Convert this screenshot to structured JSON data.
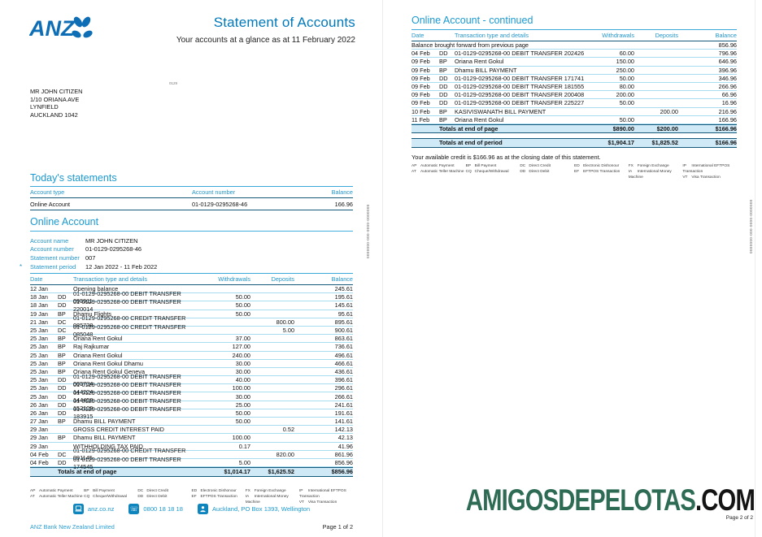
{
  "brand": {
    "logo_text": "ANZ",
    "blue": "#0d6eb6",
    "accent": "#1b9ad1",
    "title_blue": "#0079ba",
    "light_blue_bg": "#cfe9f7"
  },
  "page1": {
    "title": "Statement of Accounts",
    "subtitle": "Your accounts at a glance as at 11 February 2022",
    "mail_code": "0129",
    "address_lines": [
      "MR JOHN CITIZEN",
      "1/10 ORIANA AVE",
      "LYNFIELD",
      "AUCKLAND 1042"
    ],
    "todays_statements": {
      "heading": "Today's statements",
      "columns": [
        "Account type",
        "Account number",
        "Balance"
      ],
      "row": {
        "account_type": "Online Account",
        "account_number": "01-0129-0295268-46",
        "balance": "166.96"
      }
    },
    "account_section": {
      "heading": "Online Account",
      "details": [
        {
          "mark": "",
          "label": "Account name",
          "value": "MR JOHN CITIZEN"
        },
        {
          "mark": "",
          "label": "Account number",
          "value": "01-0129-0295268-46"
        },
        {
          "mark": "",
          "label": "Statement number",
          "value": "007"
        },
        {
          "mark": "*",
          "label": "Statement period",
          "value": "12 Jan 2022 - 11 Feb 2022"
        }
      ]
    },
    "transactions": {
      "columns": [
        "Date",
        "Transaction type and details",
        "Withdrawals",
        "Deposits",
        "Balance"
      ],
      "rows": [
        [
          "12 Jan",
          "",
          "Opening balance",
          "",
          "",
          "245.61"
        ],
        [
          "18 Jan",
          "DD",
          "01-0129-0295268-00 DEBIT TRANSFER 095911",
          "50.00",
          "",
          "195.61"
        ],
        [
          "18 Jan",
          "DD",
          "01-0129-0295268-00 DEBIT TRANSFER 220014",
          "50.00",
          "",
          "145.61"
        ],
        [
          "19 Jan",
          "BP",
          "Dhamu Flights",
          "50.00",
          "",
          "95.61"
        ],
        [
          "21 Jan",
          "DC",
          "01-0129-0295268-00 CREDIT TRANSFER 085738",
          "",
          "800.00",
          "895.61"
        ],
        [
          "25 Jan",
          "DC",
          "01-0129-0295268-00 CREDIT TRANSFER 085048",
          "",
          "5.00",
          "900.61"
        ],
        [
          "25 Jan",
          "BP",
          "Oriana Rent Gokul",
          "37.00",
          "",
          "863.61"
        ],
        [
          "25 Jan",
          "BP",
          "Raj Rajkumar",
          "127.00",
          "",
          "736.61"
        ],
        [
          "25 Jan",
          "BP",
          "Oriana Rent Gokul",
          "240.00",
          "",
          "496.61"
        ],
        [
          "25 Jan",
          "BP",
          "Oriana Rent Gokul Dhamu",
          "30.00",
          "",
          "466.61"
        ],
        [
          "25 Jan",
          "BP",
          "Oriana Rent Gokul Geneva",
          "30.00",
          "",
          "436.61"
        ],
        [
          "25 Jan",
          "DD",
          "01-0129-0295268-00 DEBIT TRANSFER 005734",
          "40.00",
          "",
          "396.61"
        ],
        [
          "25 Jan",
          "DD",
          "01-0129-0295268-00 DEBIT TRANSFER 144224",
          "100.00",
          "",
          "296.61"
        ],
        [
          "25 Jan",
          "DD",
          "01-0129-0295268-00 DEBIT TRANSFER 144458",
          "30.00",
          "",
          "266.61"
        ],
        [
          "26 Jan",
          "DD",
          "01-0129-0295268-00 DEBIT TRANSFER 152109",
          "25.00",
          "",
          "241.61"
        ],
        [
          "26 Jan",
          "DD",
          "01-0129-0295268-00 DEBIT TRANSFER 183915",
          "50.00",
          "",
          "191.61"
        ],
        [
          "27 Jan",
          "BP",
          "Dhamu BILL PAYMENT",
          "50.00",
          "",
          "141.61"
        ],
        [
          "29 Jan",
          "",
          "GROSS CREDIT INTEREST PAID",
          "",
          "0.52",
          "142.13"
        ],
        [
          "29 Jan",
          "BP",
          "Dhamu BILL PAYMENT",
          "100.00",
          "",
          "42.13"
        ],
        [
          "29 Jan",
          "",
          "WITHHOLDING TAX PAID",
          "0.17",
          "",
          "41.96"
        ],
        [
          "04 Feb",
          "DC",
          "01-0129-0295268-00 CREDIT TRANSFER 091145",
          "",
          "820.00",
          "861.96"
        ],
        [
          "04 Feb",
          "DD",
          "01-0129-0295268-00 DEBIT TRANSFER 174545",
          "5.00",
          "",
          "856.96"
        ]
      ],
      "totals_page": {
        "label": "Totals at end of page",
        "withdrawals": "$1,014.17",
        "deposits": "$1,625.52",
        "balance": "$856.96"
      }
    },
    "contact": {
      "website": "anz.co.nz",
      "phone": "0800 18 18 18",
      "postal": "Auckland, PO Box 1393, Wellington"
    },
    "company": "ANZ Bank New Zealand Limited",
    "page_label": "Page 1 of 2",
    "side_code": "0000000-000-0000-0000000"
  },
  "page2": {
    "heading": "Online Account - continued",
    "columns": [
      "Date",
      "Transaction type and details",
      "Withdrawals",
      "Deposits",
      "Balance"
    ],
    "lead_row": {
      "label": "Balance brought forward from previous page",
      "balance": "856.96"
    },
    "rows": [
      [
        "04 Feb",
        "DD",
        "01-0129-0295268-00 DEBIT TRANSFER 202426",
        "60.00",
        "",
        "796.96"
      ],
      [
        "09 Feb",
        "BP",
        "Oriana Rent Gokul",
        "150.00",
        "",
        "646.96"
      ],
      [
        "09 Feb",
        "BP",
        "Dhamu BILL PAYMENT",
        "250.00",
        "",
        "396.96"
      ],
      [
        "09 Feb",
        "DD",
        "01-0129-0295268-00 DEBIT TRANSFER 171741",
        "50.00",
        "",
        "346.96"
      ],
      [
        "09 Feb",
        "DD",
        "01-0129-0295268-00 DEBIT TRANSFER 181555",
        "80.00",
        "",
        "266.96"
      ],
      [
        "09 Feb",
        "DD",
        "01-0129-0295268-00 DEBIT TRANSFER 200408",
        "200.00",
        "",
        "66.96"
      ],
      [
        "09 Feb",
        "DD",
        "01-0129-0295268-00 DEBIT TRANSFER 225227",
        "50.00",
        "",
        "16.96"
      ],
      [
        "10 Feb",
        "BP",
        "KASIVISWANATH BILL PAYMENT",
        "",
        "200.00",
        "216.96"
      ],
      [
        "11 Feb",
        "BP",
        "Oriana Rent Gokul",
        "50.00",
        "",
        "166.96"
      ]
    ],
    "totals_page": {
      "label": "Totals at end of page",
      "withdrawals": "$890.00",
      "deposits": "$200.00",
      "balance": "$166.96"
    },
    "totals_period": {
      "label": "Totals at end of period",
      "withdrawals": "$1,904.17",
      "deposits": "$1,825.52",
      "balance": "$166.96"
    },
    "available_credit_note": "Your available credit is $166.96 as at the closing date of this statement.",
    "side_code": "0000000-000-0000-0000000"
  },
  "legend_columns": [
    {
      "top_code": "AP",
      "top_label": "Automatic Payment",
      "bottom_code": "AT",
      "bottom_label": "Automatic Teller Machine"
    },
    {
      "top_code": "BP",
      "top_label": "Bill Payment",
      "bottom_code": "CQ",
      "bottom_label": "Cheque/Withdrawal"
    },
    {
      "top_code": "DC",
      "top_label": "Direct Credit",
      "bottom_code": "DD",
      "bottom_label": "Direct Debit"
    },
    {
      "top_code": "ED",
      "top_label": "Electronic Dishonour",
      "bottom_code": "EF",
      "bottom_label": "EFTPOS Transaction"
    },
    {
      "top_code": "FX",
      "top_label": "Foreign Exchange",
      "bottom_code": "IA",
      "bottom_label": "International Money Machine"
    },
    {
      "top_code": "IP",
      "top_label": "International EFTPOS Transaction",
      "bottom_code": "VT",
      "bottom_label": "Visa Transaction"
    }
  ],
  "watermark": {
    "main": "AMIGOSDEPELOTAS",
    "suffix": ".COM",
    "main_color": "#2e6b55",
    "suffix_color": "#141414",
    "page_label": "Page 2 of 2"
  }
}
